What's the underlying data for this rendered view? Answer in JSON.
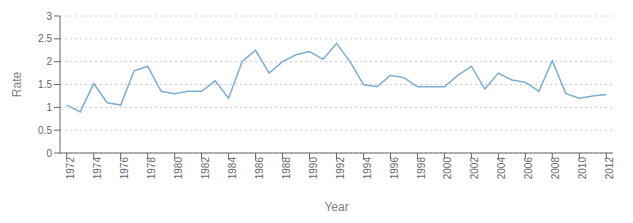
{
  "chart_data": {
    "type": "line",
    "x": [
      1972,
      1973,
      1974,
      1975,
      1976,
      1977,
      1978,
      1979,
      1980,
      1981,
      1982,
      1983,
      1984,
      1985,
      1986,
      1987,
      1988,
      1989,
      1990,
      1991,
      1992,
      1993,
      1994,
      1995,
      1996,
      1997,
      1998,
      1999,
      2000,
      2001,
      2002,
      2003,
      2004,
      2005,
      2006,
      2007,
      2008,
      2009,
      2010,
      2011,
      2012
    ],
    "values": [
      1.05,
      0.9,
      1.52,
      1.1,
      1.05,
      1.8,
      1.9,
      1.35,
      1.3,
      1.35,
      1.35,
      1.58,
      1.2,
      2.0,
      2.25,
      1.75,
      2.0,
      2.15,
      2.22,
      2.05,
      2.4,
      2.0,
      1.5,
      1.45,
      1.7,
      1.65,
      1.45,
      1.45,
      1.45,
      1.7,
      1.9,
      1.4,
      1.75,
      1.6,
      1.55,
      1.35,
      2.02,
      1.3,
      1.2,
      1.25,
      1.28
    ],
    "color": "#7bafd4",
    "xlabel": "Year",
    "ylabel": "Rate",
    "xlim": [
      1971.5,
      2012.5
    ],
    "xticks": [
      1972,
      1974,
      1976,
      1978,
      1980,
      1982,
      1984,
      1986,
      1988,
      1990,
      1992,
      1994,
      1996,
      1998,
      2000,
      2002,
      2004,
      2006,
      2008,
      2010,
      2012
    ],
    "ylim": [
      0,
      3.0
    ],
    "yticks": [
      0,
      0.5,
      1.0,
      1.5,
      2.0,
      2.5,
      3.0
    ],
    "grid": true
  }
}
